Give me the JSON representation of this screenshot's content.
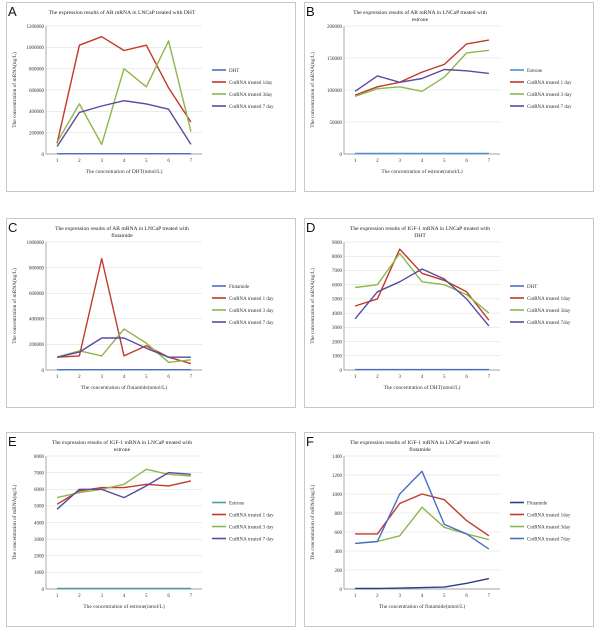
{
  "chart_data": [
    {
      "letter": "A",
      "type": "line",
      "title": [
        "The expression results of AR mRNA in LNCaP treated with DHT"
      ],
      "xlabel": "The concentration of DHT(nmol/L)",
      "ylabel": "The concentration of mRNA(ng/L)",
      "categories": [
        "1",
        "2",
        "3",
        "4",
        "5",
        "6",
        "7"
      ],
      "ylim": [
        0,
        1200000
      ],
      "yticks": [
        "0",
        "200000",
        "400000",
        "600000",
        "800000",
        "1000000",
        "1200000"
      ],
      "series": [
        {
          "name": "DHT",
          "color": "#4a6fc4",
          "values": [
            3000,
            3000,
            3000,
            3000,
            3000,
            3000,
            3000
          ]
        },
        {
          "name": "CntRNA treated 1day",
          "color": "#c0392b",
          "values": [
            100000,
            1020000,
            1100000,
            970000,
            1020000,
            620000,
            300000
          ]
        },
        {
          "name": "CntRNA treated 3day",
          "color": "#8db84a",
          "values": [
            110000,
            470000,
            90000,
            800000,
            630000,
            1060000,
            210000
          ]
        },
        {
          "name": "CntRNA treated 7 day",
          "color": "#5b4a9e",
          "values": [
            70000,
            390000,
            450000,
            500000,
            470000,
            420000,
            90000
          ]
        }
      ]
    },
    {
      "letter": "B",
      "type": "line",
      "title": [
        "The expression results of AR mRNA in LNCaP treated with",
        "estrone"
      ],
      "xlabel": "The concentration of estrone(nmol/L)",
      "ylabel": "The concentration of mRNA(ng/L)",
      "categories": [
        "1",
        "2",
        "3",
        "4",
        "5",
        "6",
        "7"
      ],
      "ylim": [
        0,
        200000
      ],
      "yticks": [
        "0",
        "50000",
        "100000",
        "150000",
        "200000"
      ],
      "series": [
        {
          "name": "Estrone",
          "color": "#4a90d9",
          "values": [
            1000,
            1000,
            1000,
            1000,
            1000,
            1000,
            1000
          ]
        },
        {
          "name": "CntRNA treated 1 day",
          "color": "#c0392b",
          "values": [
            92000,
            105000,
            112000,
            128000,
            140000,
            172000,
            178000
          ]
        },
        {
          "name": "CntRNA treated 3 day",
          "color": "#8db84a",
          "values": [
            90000,
            102000,
            105000,
            98000,
            120000,
            158000,
            162000
          ]
        },
        {
          "name": "CntRNA treated 7 day",
          "color": "#5b4a9e",
          "values": [
            98000,
            122000,
            112000,
            118000,
            132000,
            130000,
            126000
          ]
        }
      ]
    },
    {
      "letter": "C",
      "type": "line",
      "title": [
        "The expression results of AR mRNA in LNCaP treated with",
        "flutamide"
      ],
      "xlabel": "The concentration of flutamide(nmol/L)",
      "ylabel": "The concentration of mRNA(ng/L)",
      "categories": [
        "1",
        "2",
        "3",
        "4",
        "5",
        "6",
        "7"
      ],
      "ylim": [
        0,
        1000000
      ],
      "yticks": [
        "0",
        "200000",
        "400000",
        "600000",
        "800000",
        "1000000"
      ],
      "series": [
        {
          "name": "Flutamide",
          "color": "#4a6fc4",
          "values": [
            2000,
            2000,
            2000,
            2000,
            2000,
            2000,
            2000
          ]
        },
        {
          "name": "CntRNA treated 1 day",
          "color": "#c0392b",
          "values": [
            100000,
            110000,
            870000,
            110000,
            190000,
            100000,
            50000
          ]
        },
        {
          "name": "CntRNA treated 3 day",
          "color": "#8db84a",
          "values": [
            100000,
            150000,
            110000,
            320000,
            210000,
            60000,
            80000
          ]
        },
        {
          "name": "CntRNA treated 7 day",
          "color": "#5b4a9e",
          "values": [
            100000,
            140000,
            250000,
            250000,
            170000,
            100000,
            100000
          ]
        }
      ]
    },
    {
      "letter": "D",
      "type": "line",
      "title": [
        "The expression results of IGF-1 mRNA in LNCaP treated with",
        "DHT"
      ],
      "xlabel": "The concentration of DHT(nmol/L)",
      "ylabel": "The concentration of mRNA(ng/L)",
      "categories": [
        "1",
        "2",
        "3",
        "4",
        "5",
        "6",
        "7"
      ],
      "ylim": [
        0,
        9000
      ],
      "yticks": [
        "0",
        "1000",
        "2000",
        "3000",
        "4000",
        "5000",
        "6000",
        "7000",
        "8000",
        "9000"
      ],
      "series": [
        {
          "name": "DHT",
          "color": "#4a6fc4",
          "values": [
            30,
            30,
            30,
            30,
            30,
            30,
            30
          ]
        },
        {
          "name": "CntRNA treated 1day",
          "color": "#c0392b",
          "values": [
            4500,
            5000,
            8500,
            6800,
            6300,
            5500,
            3500
          ]
        },
        {
          "name": "CntRNA treated 3day",
          "color": "#8db84a",
          "values": [
            5800,
            6000,
            8200,
            6200,
            6000,
            5300,
            4000
          ]
        },
        {
          "name": "CntRNA treated 7day",
          "color": "#5b4a9e",
          "values": [
            3600,
            5500,
            6200,
            7100,
            6400,
            5000,
            3100
          ]
        }
      ]
    },
    {
      "letter": "E",
      "type": "line",
      "title": [
        "The expression results of IGF-1 mRNA in LNCaP treated with",
        "estrone"
      ],
      "xlabel": "The concentration of estrone(nmol/L)",
      "ylabel": "The concentration of mRNA(ng/L)",
      "categories": [
        "1",
        "2",
        "3",
        "4",
        "5",
        "6",
        "7"
      ],
      "ylim": [
        0,
        8000
      ],
      "yticks": [
        "0",
        "1000",
        "2000",
        "3000",
        "4000",
        "5000",
        "6000",
        "7000",
        "8000"
      ],
      "series": [
        {
          "name": "Estrone",
          "color": "#4a9e9e",
          "values": [
            30,
            30,
            30,
            30,
            30,
            30,
            30
          ]
        },
        {
          "name": "CntRNA treated 1 day",
          "color": "#c0392b",
          "values": [
            5100,
            5900,
            6100,
            6100,
            6300,
            6200,
            6500
          ]
        },
        {
          "name": "CntRNA treated 3 day",
          "color": "#8db84a",
          "values": [
            5500,
            5800,
            6000,
            6300,
            7200,
            6900,
            6800
          ]
        },
        {
          "name": "CntRNA treated 7 day",
          "color": "#5b4a9e",
          "values": [
            4800,
            6000,
            6000,
            5500,
            6200,
            7000,
            6900
          ]
        }
      ]
    },
    {
      "letter": "F",
      "type": "line",
      "title": [
        "The expression results of IGF-1 mRNA in LNCaP treated with",
        "flutamide"
      ],
      "xlabel": "The concentration of flutamide(nmol/L)",
      "ylabel": "The concentration of mRNA(ng/L)",
      "categories": [
        "1",
        "2",
        "3",
        "4",
        "5",
        "6",
        "7"
      ],
      "ylim": [
        0,
        1400
      ],
      "yticks": [
        "0",
        "200",
        "400",
        "600",
        "800",
        "1000",
        "1200",
        "1400"
      ],
      "series": [
        {
          "name": "Flutamide",
          "color": "#2c3e8c",
          "values": [
            5,
            5,
            10,
            15,
            20,
            60,
            110
          ]
        },
        {
          "name": "CntRNA treated 1day",
          "color": "#c0392b",
          "values": [
            580,
            580,
            900,
            1000,
            940,
            720,
            560
          ]
        },
        {
          "name": "CntRNA treated 3day",
          "color": "#8db84a",
          "values": [
            480,
            500,
            560,
            860,
            650,
            580,
            520
          ]
        },
        {
          "name": "CntRNA treated 7day",
          "color": "#4a6fc4",
          "values": [
            480,
            500,
            1000,
            1240,
            680,
            580,
            420
          ]
        }
      ]
    }
  ]
}
